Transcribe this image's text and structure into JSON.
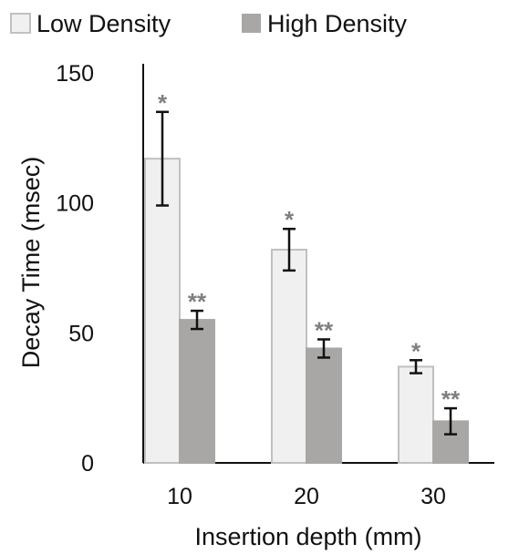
{
  "chart_data": {
    "type": "bar",
    "title": "",
    "xlabel": "Insertion depth (mm)",
    "ylabel": "Decay Time (msec)",
    "categories": [
      "10",
      "20",
      "30"
    ],
    "ylim": [
      0,
      150
    ],
    "yticks": [
      0,
      50,
      100,
      150
    ],
    "grid": false,
    "legend_position": "top",
    "series": [
      {
        "name": "Low Density",
        "values": [
          117,
          82,
          37
        ],
        "errors": [
          18,
          8,
          2.5
        ],
        "significance": [
          "*",
          "*",
          "*"
        ],
        "fill": "#f0f0f0",
        "stroke": "#c0c0c0"
      },
      {
        "name": "High Density",
        "values": [
          55,
          44,
          16
        ],
        "errors": [
          3.5,
          3.5,
          5
        ],
        "significance": [
          "**",
          "**",
          "**"
        ],
        "fill": "#a9a6a6",
        "stroke": "#a9a6a6"
      }
    ],
    "colors": {
      "axis": "#111111",
      "error_bar": "#111111",
      "significance": "#7f7f7f"
    }
  }
}
